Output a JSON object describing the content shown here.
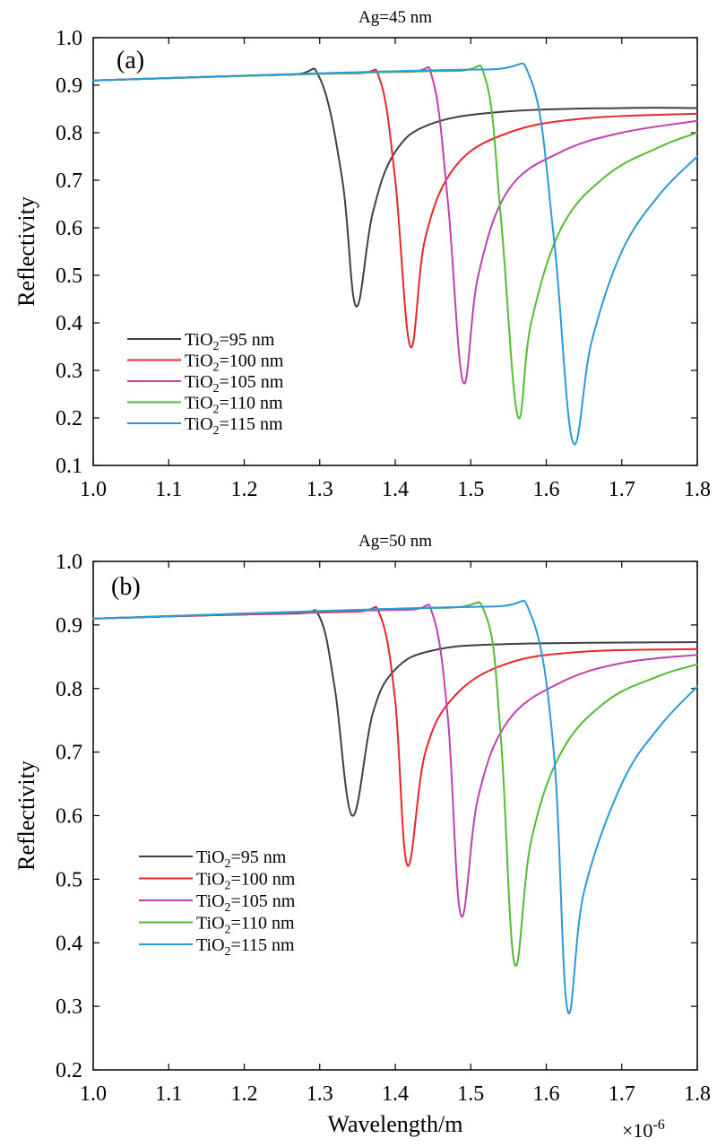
{
  "figure": {
    "ylabel": "Reflectivity",
    "xlabel": "Wavelength/m",
    "x_multiplier": "×10-6"
  },
  "chart_data": [
    {
      "type": "line",
      "panel": "(a)",
      "title": "Ag=45 nm",
      "ylabel": "Reflectivity",
      "xlabel": "",
      "xlim": [
        1.0,
        1.8
      ],
      "ylim": [
        0.1,
        1.0
      ],
      "xticks": [
        "1.0",
        "1.1",
        "1.2",
        "1.3",
        "1.4",
        "1.5",
        "1.6",
        "1.7",
        "1.8"
      ],
      "yticks": [
        "0.1",
        "0.2",
        "0.3",
        "0.4",
        "0.5",
        "0.6",
        "0.7",
        "0.8",
        "0.9",
        "1.0"
      ],
      "legend_position": "lower-left",
      "series": [
        {
          "name": "TiO2=95 nm",
          "color": "#404040",
          "dip_x": 1.348,
          "dip_y": 0.435,
          "pre_peak_y": 0.922,
          "asymptote_y": 0.852,
          "start_y": 0.91,
          "points": [
            [
              1.0,
              0.91
            ],
            [
              1.26,
              0.922
            ],
            [
              1.3,
              0.915
            ],
            [
              1.33,
              0.7
            ],
            [
              1.348,
              0.435
            ],
            [
              1.37,
              0.63
            ],
            [
              1.4,
              0.76
            ],
            [
              1.45,
              0.82
            ],
            [
              1.55,
              0.845
            ],
            [
              1.7,
              0.852
            ],
            [
              1.8,
              0.852
            ]
          ]
        },
        {
          "name": "TiO2=100 nm",
          "color": "#e8262a",
          "dip_x": 1.42,
          "dip_y": 0.35,
          "pre_peak_y": 0.925,
          "asymptote_y": 0.84,
          "start_y": 0.91,
          "points": [
            [
              1.0,
              0.91
            ],
            [
              1.35,
              0.925
            ],
            [
              1.38,
              0.91
            ],
            [
              1.4,
              0.7
            ],
            [
              1.42,
              0.35
            ],
            [
              1.44,
              0.58
            ],
            [
              1.48,
              0.73
            ],
            [
              1.55,
              0.8
            ],
            [
              1.65,
              0.83
            ],
            [
              1.8,
              0.84
            ]
          ]
        },
        {
          "name": "TiO2=105 nm",
          "color": "#c040b0",
          "dip_x": 1.49,
          "dip_y": 0.275,
          "pre_peak_y": 0.928,
          "asymptote_y": 0.825,
          "start_y": 0.91,
          "points": [
            [
              1.0,
              0.91
            ],
            [
              1.42,
              0.928
            ],
            [
              1.45,
              0.91
            ],
            [
              1.47,
              0.65
            ],
            [
              1.49,
              0.275
            ],
            [
              1.51,
              0.5
            ],
            [
              1.55,
              0.68
            ],
            [
              1.62,
              0.76
            ],
            [
              1.7,
              0.8
            ],
            [
              1.8,
              0.825
            ]
          ]
        },
        {
          "name": "TiO2=110 nm",
          "color": "#55bb33",
          "dip_x": 1.562,
          "dip_y": 0.205,
          "pre_peak_y": 0.93,
          "asymptote_y": 0.8,
          "start_y": 0.91,
          "points": [
            [
              1.0,
              0.91
            ],
            [
              1.48,
              0.93
            ],
            [
              1.52,
              0.91
            ],
            [
              1.54,
              0.62
            ],
            [
              1.562,
              0.205
            ],
            [
              1.58,
              0.4
            ],
            [
              1.62,
              0.6
            ],
            [
              1.68,
              0.71
            ],
            [
              1.75,
              0.77
            ],
            [
              1.8,
              0.8
            ]
          ]
        },
        {
          "name": "TiO2=115 nm",
          "color": "#2a9ad8",
          "dip_x": 1.635,
          "dip_y": 0.15,
          "pre_peak_y": 0.933,
          "asymptote_y": 0.75,
          "start_y": 0.91,
          "points": [
            [
              1.0,
              0.91
            ],
            [
              1.52,
              0.933
            ],
            [
              1.58,
              0.91
            ],
            [
              1.61,
              0.58
            ],
            [
              1.635,
              0.15
            ],
            [
              1.66,
              0.36
            ],
            [
              1.7,
              0.55
            ],
            [
              1.75,
              0.67
            ],
            [
              1.8,
              0.75
            ]
          ]
        }
      ]
    },
    {
      "type": "line",
      "panel": "(b)",
      "title": "Ag=50 nm",
      "ylabel": "Reflectivity",
      "xlabel": "Wavelength/m",
      "x_multiplier": "×10-6",
      "xlim": [
        1.0,
        1.8
      ],
      "ylim": [
        0.2,
        1.0
      ],
      "xticks": [
        "1.0",
        "1.1",
        "1.2",
        "1.3",
        "1.4",
        "1.5",
        "1.6",
        "1.7",
        "1.8"
      ],
      "yticks": [
        "0.2",
        "0.3",
        "0.4",
        "0.5",
        "0.6",
        "0.7",
        "0.8",
        "0.9",
        "1.0"
      ],
      "legend_position": "lower-left",
      "series": [
        {
          "name": "TiO2=95 nm",
          "color": "#404040",
          "dip_x": 1.343,
          "dip_y": 0.6,
          "pre_peak_y": 0.918,
          "asymptote_y": 0.873,
          "start_y": 0.91,
          "points": [
            [
              1.0,
              0.91
            ],
            [
              1.27,
              0.918
            ],
            [
              1.3,
              0.912
            ],
            [
              1.32,
              0.8
            ],
            [
              1.343,
              0.6
            ],
            [
              1.37,
              0.76
            ],
            [
              1.4,
              0.83
            ],
            [
              1.45,
              0.86
            ],
            [
              1.55,
              0.87
            ],
            [
              1.8,
              0.873
            ]
          ]
        },
        {
          "name": "TiO2=100 nm",
          "color": "#e8262a",
          "dip_x": 1.416,
          "dip_y": 0.522,
          "pre_peak_y": 0.921,
          "asymptote_y": 0.862,
          "start_y": 0.91,
          "points": [
            [
              1.0,
              0.91
            ],
            [
              1.35,
              0.921
            ],
            [
              1.38,
              0.915
            ],
            [
              1.4,
              0.78
            ],
            [
              1.416,
              0.522
            ],
            [
              1.44,
              0.7
            ],
            [
              1.48,
              0.79
            ],
            [
              1.55,
              0.84
            ],
            [
              1.65,
              0.858
            ],
            [
              1.8,
              0.862
            ]
          ]
        },
        {
          "name": "TiO2=105 nm",
          "color": "#c040b0",
          "dip_x": 1.487,
          "dip_y": 0.443,
          "pre_peak_y": 0.924,
          "asymptote_y": 0.853,
          "start_y": 0.91,
          "points": [
            [
              1.0,
              0.91
            ],
            [
              1.42,
              0.924
            ],
            [
              1.45,
              0.915
            ],
            [
              1.47,
              0.75
            ],
            [
              1.487,
              0.443
            ],
            [
              1.51,
              0.63
            ],
            [
              1.55,
              0.75
            ],
            [
              1.62,
              0.81
            ],
            [
              1.7,
              0.84
            ],
            [
              1.8,
              0.853
            ]
          ]
        },
        {
          "name": "TiO2=110 nm",
          "color": "#55bb33",
          "dip_x": 1.558,
          "dip_y": 0.367,
          "pre_peak_y": 0.927,
          "asymptote_y": 0.838,
          "start_y": 0.91,
          "points": [
            [
              1.0,
              0.91
            ],
            [
              1.47,
              0.927
            ],
            [
              1.52,
              0.915
            ],
            [
              1.54,
              0.72
            ],
            [
              1.558,
              0.367
            ],
            [
              1.58,
              0.56
            ],
            [
              1.62,
              0.7
            ],
            [
              1.68,
              0.78
            ],
            [
              1.75,
              0.82
            ],
            [
              1.8,
              0.838
            ]
          ]
        },
        {
          "name": "TiO2=115 nm",
          "color": "#2a9ad8",
          "dip_x": 1.628,
          "dip_y": 0.295,
          "pre_peak_y": 0.929,
          "asymptote_y": 0.803,
          "start_y": 0.91,
          "points": [
            [
              1.0,
              0.91
            ],
            [
              1.53,
              0.929
            ],
            [
              1.58,
              0.915
            ],
            [
              1.61,
              0.7
            ],
            [
              1.628,
              0.295
            ],
            [
              1.65,
              0.48
            ],
            [
              1.7,
              0.65
            ],
            [
              1.75,
              0.74
            ],
            [
              1.8,
              0.803
            ]
          ]
        }
      ]
    }
  ]
}
